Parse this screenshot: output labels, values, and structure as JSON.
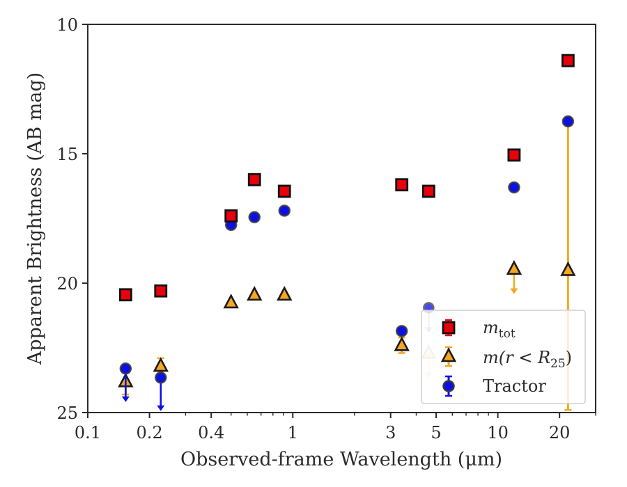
{
  "chart_data": {
    "type": "scatter",
    "xlabel": "Observed-frame Wavelength (μm)",
    "ylabel": "Apparent Brightness (AB mag)",
    "xscale": "log",
    "xlim": [
      0.1,
      30
    ],
    "ylim": [
      25,
      10
    ],
    "y_inverted": true,
    "grid": false,
    "legend_position": "lower-right",
    "xticks": [
      {
        "value": 0.1,
        "label": "0.1"
      },
      {
        "value": 0.2,
        "label": "0.2"
      },
      {
        "value": 0.4,
        "label": "0.4"
      },
      {
        "value": 1,
        "label": "1"
      },
      {
        "value": 3,
        "label": "3"
      },
      {
        "value": 5,
        "label": "5"
      },
      {
        "value": 10,
        "label": "10"
      },
      {
        "value": 20,
        "label": "20"
      }
    ],
    "yticks": [
      {
        "value": 10,
        "label": "10"
      },
      {
        "value": 15,
        "label": "15"
      },
      {
        "value": 20,
        "label": "20"
      },
      {
        "value": 25,
        "label": "25"
      }
    ],
    "series": [
      {
        "name": "m_tot",
        "marker": "square",
        "color": "#e8000b",
        "points": [
          {
            "x": 0.153,
            "y": 20.45
          },
          {
            "x": 0.227,
            "y": 20.3
          },
          {
            "x": 0.5,
            "y": 17.4
          },
          {
            "x": 0.65,
            "y": 16.0
          },
          {
            "x": 0.91,
            "y": 16.45
          },
          {
            "x": 3.4,
            "y": 16.2
          },
          {
            "x": 4.6,
            "y": 16.45
          },
          {
            "x": 12.0,
            "y": 15.05
          },
          {
            "x": 22.0,
            "y": 11.4
          }
        ]
      },
      {
        "name": "m(r<R25)",
        "marker": "triangle",
        "color": "#f5a623",
        "points": [
          {
            "x": 0.153,
            "y": 23.8,
            "yerr": 0.5
          },
          {
            "x": 0.227,
            "y": 23.2,
            "yerr": 0.3
          },
          {
            "x": 0.5,
            "y": 20.75
          },
          {
            "x": 0.65,
            "y": 20.45
          },
          {
            "x": 0.91,
            "y": 20.45
          },
          {
            "x": 3.4,
            "y": 22.4,
            "yerr": 0.3
          },
          {
            "x": 4.6,
            "y": 22.7,
            "upper_limit": true,
            "faded": true
          },
          {
            "x": 12.0,
            "y": 19.45,
            "upper_limit": true
          },
          {
            "x": 22.0,
            "y": 19.5,
            "ylow": 13.9,
            "yhigh": 24.9
          }
        ]
      },
      {
        "name": "Tractor",
        "marker": "circle",
        "color": "#0a10e6",
        "points": [
          {
            "x": 0.153,
            "y": 23.3,
            "upper_limit": true
          },
          {
            "x": 0.227,
            "y": 23.65,
            "upper_limit": true
          },
          {
            "x": 0.5,
            "y": 17.75
          },
          {
            "x": 0.65,
            "y": 17.45
          },
          {
            "x": 0.91,
            "y": 17.2
          },
          {
            "x": 3.4,
            "y": 21.85
          },
          {
            "x": 4.6,
            "y": 20.95,
            "upper_limit": true,
            "faded": true
          },
          {
            "x": 12.0,
            "y": 16.3
          },
          {
            "x": 22.0,
            "y": 13.75
          }
        ]
      }
    ]
  },
  "legend": {
    "mtot_base": "m",
    "mtot_sub": "tot",
    "mr_base": "m(r < R",
    "mr_sub": "25",
    "mr_close": ")",
    "tractor": "Tractor"
  }
}
